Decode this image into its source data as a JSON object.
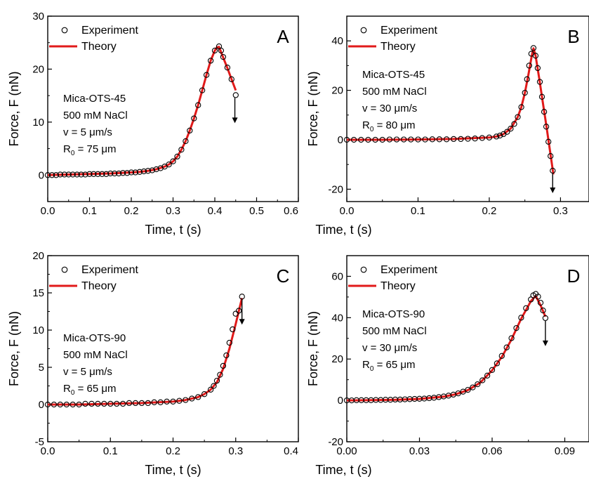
{
  "legend_experiment": "Experiment",
  "legend_theory": "Theory",
  "colors": {
    "theory": "#e11a1a",
    "experiment": "#000000",
    "axis": "#000000"
  },
  "chart_data": [
    {
      "type": "scatter",
      "panel_label": "A",
      "xlabel": "Time, t (s)",
      "ylabel": "Force, F (nN)",
      "xlim": [
        0,
        0.6
      ],
      "ylim": [
        -5,
        30
      ],
      "xticks": [
        "0.0",
        "0.1",
        "0.2",
        "0.3",
        "0.4",
        "0.5",
        "0.6"
      ],
      "yticks": [
        "0",
        "10",
        "20",
        "30"
      ],
      "annotation": [
        "Mica-OTS-45",
        "500 mM NaCl",
        "v = 5 μm/s",
        "R0 = 75 μm"
      ],
      "series": [
        {
          "name": "Experiment",
          "x": [
            0.0,
            0.01,
            0.02,
            0.03,
            0.04,
            0.05,
            0.06,
            0.07,
            0.08,
            0.09,
            0.1,
            0.11,
            0.12,
            0.13,
            0.14,
            0.15,
            0.16,
            0.17,
            0.18,
            0.19,
            0.2,
            0.21,
            0.22,
            0.23,
            0.24,
            0.25,
            0.26,
            0.27,
            0.28,
            0.29,
            0.3,
            0.31,
            0.32,
            0.33,
            0.34,
            0.35,
            0.36,
            0.37,
            0.38,
            0.39,
            0.4,
            0.41,
            0.415,
            0.42,
            0.43,
            0.44,
            0.45
          ],
          "y": [
            0.0,
            0.0,
            0.0,
            0.1,
            0.1,
            0.1,
            0.1,
            0.1,
            0.1,
            0.1,
            0.2,
            0.2,
            0.2,
            0.2,
            0.2,
            0.3,
            0.3,
            0.3,
            0.4,
            0.4,
            0.5,
            0.5,
            0.6,
            0.7,
            0.8,
            0.9,
            1.1,
            1.3,
            1.6,
            2.0,
            2.6,
            3.5,
            4.8,
            6.4,
            8.4,
            10.7,
            13.2,
            16.0,
            18.9,
            21.6,
            23.5,
            24.3,
            23.5,
            22.3,
            20.3,
            18.1,
            15.1
          ]
        },
        {
          "name": "Theory",
          "x": [
            0.0,
            0.05,
            0.1,
            0.15,
            0.2,
            0.22,
            0.24,
            0.26,
            0.28,
            0.29,
            0.3,
            0.31,
            0.32,
            0.33,
            0.34,
            0.35,
            0.36,
            0.37,
            0.38,
            0.39,
            0.4,
            0.405,
            0.41,
            0.42,
            0.43,
            0.44,
            0.45
          ],
          "y": [
            0.0,
            0.1,
            0.2,
            0.3,
            0.5,
            0.6,
            0.8,
            1.1,
            1.6,
            2.0,
            2.6,
            3.5,
            4.8,
            6.4,
            8.4,
            10.7,
            13.2,
            16.0,
            18.9,
            21.6,
            23.5,
            24.1,
            24.2,
            22.2,
            20.2,
            18.1,
            16.0
          ]
        }
      ],
      "arrow_x": 0.448
    },
    {
      "type": "scatter",
      "panel_label": "B",
      "xlabel": "Time, t (s)",
      "ylabel": "Force, F (nN)",
      "xlim": [
        0,
        0.34
      ],
      "ylim": [
        -25,
        50
      ],
      "xticks": [
        "0.0",
        "0.1",
        "0.2",
        "0.3"
      ],
      "yticks": [
        "-20",
        "0",
        "20",
        "40"
      ],
      "annotation": [
        "Mica-OTS-45",
        "500 mM NaCl",
        "v = 30 μm/s",
        "R0 = 80 μm"
      ],
      "series": [
        {
          "name": "Experiment",
          "x": [
            0.0,
            0.01,
            0.02,
            0.03,
            0.04,
            0.05,
            0.06,
            0.07,
            0.08,
            0.09,
            0.1,
            0.11,
            0.12,
            0.13,
            0.14,
            0.15,
            0.16,
            0.17,
            0.18,
            0.19,
            0.2,
            0.21,
            0.215,
            0.22,
            0.225,
            0.23,
            0.235,
            0.24,
            0.245,
            0.25,
            0.253,
            0.256,
            0.259,
            0.262,
            0.265,
            0.268,
            0.271,
            0.274,
            0.277,
            0.28,
            0.283,
            0.286,
            0.289
          ],
          "y": [
            0.0,
            0.0,
            0.0,
            0.0,
            0.0,
            0.0,
            0.1,
            0.1,
            0.1,
            0.1,
            0.1,
            0.1,
            0.2,
            0.2,
            0.2,
            0.3,
            0.3,
            0.4,
            0.5,
            0.7,
            0.9,
            1.3,
            1.7,
            2.3,
            3.2,
            4.5,
            6.4,
            9.2,
            13.2,
            19.0,
            24.5,
            30.0,
            34.8,
            37.1,
            34.0,
            29.0,
            23.4,
            17.4,
            11.3,
            5.3,
            -0.8,
            -6.6,
            -12.5
          ]
        },
        {
          "name": "Theory",
          "x": [
            0.0,
            0.05,
            0.1,
            0.15,
            0.2,
            0.21,
            0.22,
            0.23,
            0.24,
            0.245,
            0.25,
            0.255,
            0.26,
            0.262,
            0.265,
            0.27,
            0.275,
            0.28,
            0.285,
            0.29
          ],
          "y": [
            0.0,
            0.0,
            0.1,
            0.3,
            0.9,
            1.3,
            2.3,
            4.5,
            9.2,
            13.2,
            19.0,
            26.5,
            34.5,
            37.0,
            34.0,
            25.0,
            15.5,
            6.0,
            -4.0,
            -14.0
          ]
        }
      ],
      "arrow_x": 0.289
    },
    {
      "type": "scatter",
      "panel_label": "C",
      "xlabel": "Time, t (s)",
      "ylabel": "Force, F (nN)",
      "xlim": [
        0,
        0.4
      ],
      "ylim": [
        -5,
        20
      ],
      "xticks": [
        "0.0",
        "0.1",
        "0.2",
        "0.3",
        "0.4"
      ],
      "yticks": [
        "-5",
        "0",
        "5",
        "10",
        "15",
        "20"
      ],
      "annotation": [
        "Mica-OTS-90",
        "500 mM NaCl",
        "v = 5 μm/s",
        "R0 = 65 μm"
      ],
      "series": [
        {
          "name": "Experiment",
          "x": [
            0.0,
            0.01,
            0.02,
            0.03,
            0.04,
            0.05,
            0.06,
            0.07,
            0.08,
            0.09,
            0.1,
            0.11,
            0.12,
            0.13,
            0.14,
            0.15,
            0.16,
            0.17,
            0.18,
            0.19,
            0.2,
            0.21,
            0.22,
            0.23,
            0.24,
            0.25,
            0.26,
            0.265,
            0.27,
            0.275,
            0.28,
            0.285,
            0.29,
            0.295,
            0.3,
            0.305,
            0.31
          ],
          "y": [
            0.0,
            0.0,
            0.0,
            0.0,
            0.0,
            0.0,
            0.1,
            0.1,
            0.1,
            0.1,
            0.1,
            0.1,
            0.1,
            0.2,
            0.2,
            0.2,
            0.2,
            0.3,
            0.3,
            0.4,
            0.4,
            0.5,
            0.6,
            0.8,
            1.0,
            1.4,
            2.0,
            2.5,
            3.2,
            4.0,
            5.2,
            6.6,
            8.3,
            10.1,
            12.2,
            12.6,
            14.5
          ]
        },
        {
          "name": "Theory",
          "x": [
            0.0,
            0.05,
            0.1,
            0.15,
            0.2,
            0.22,
            0.24,
            0.25,
            0.26,
            0.27,
            0.28,
            0.29,
            0.3,
            0.31
          ],
          "y": [
            0.0,
            0.0,
            0.1,
            0.2,
            0.4,
            0.6,
            1.0,
            1.4,
            2.0,
            3.0,
            4.8,
            7.5,
            10.8,
            14.3
          ]
        }
      ],
      "arrow_x": 0.31
    },
    {
      "type": "scatter",
      "panel_label": "D",
      "xlabel": "Time, t (s)",
      "ylabel": "Force, F (nN)",
      "xlim": [
        0,
        0.1
      ],
      "ylim": [
        -20,
        70
      ],
      "xticks": [
        "0.00",
        "0.03",
        "0.06",
        "0.09"
      ],
      "yticks": [
        "-20",
        "0",
        "20",
        "40",
        "60"
      ],
      "annotation": [
        "Mica-OTS-90",
        "500 mM NaCl",
        "v = 30 μm/s",
        "R0 = 65 μm"
      ],
      "series": [
        {
          "name": "Experiment",
          "x": [
            0.0,
            0.002,
            0.004,
            0.006,
            0.008,
            0.01,
            0.012,
            0.014,
            0.016,
            0.018,
            0.02,
            0.022,
            0.024,
            0.026,
            0.028,
            0.03,
            0.032,
            0.034,
            0.036,
            0.038,
            0.04,
            0.042,
            0.044,
            0.046,
            0.048,
            0.05,
            0.052,
            0.054,
            0.056,
            0.058,
            0.06,
            0.062,
            0.064,
            0.066,
            0.068,
            0.07,
            0.072,
            0.074,
            0.076,
            0.077,
            0.078,
            0.079,
            0.08,
            0.081,
            0.082
          ],
          "y": [
            0.0,
            0.0,
            0.1,
            0.1,
            0.1,
            0.1,
            0.2,
            0.2,
            0.3,
            0.3,
            0.4,
            0.4,
            0.5,
            0.6,
            0.7,
            0.8,
            0.9,
            1.1,
            1.3,
            1.6,
            1.9,
            2.3,
            2.8,
            3.4,
            4.2,
            5.1,
            6.3,
            7.8,
            9.7,
            12.0,
            14.7,
            17.9,
            21.5,
            25.6,
            30.1,
            35.0,
            40.0,
            44.6,
            48.8,
            50.8,
            51.5,
            50.2,
            47.2,
            43.5,
            39.8
          ]
        },
        {
          "name": "Theory",
          "x": [
            0.0,
            0.01,
            0.02,
            0.03,
            0.04,
            0.045,
            0.05,
            0.055,
            0.06,
            0.064,
            0.068,
            0.072,
            0.076,
            0.078,
            0.08,
            0.082
          ],
          "y": [
            0.0,
            0.1,
            0.3,
            0.7,
            1.8,
            3.0,
            5.0,
            8.5,
            14.5,
            21.0,
            29.5,
            39.5,
            48.0,
            50.5,
            46.0,
            40.5
          ]
        }
      ],
      "arrow_x": 0.082
    }
  ]
}
